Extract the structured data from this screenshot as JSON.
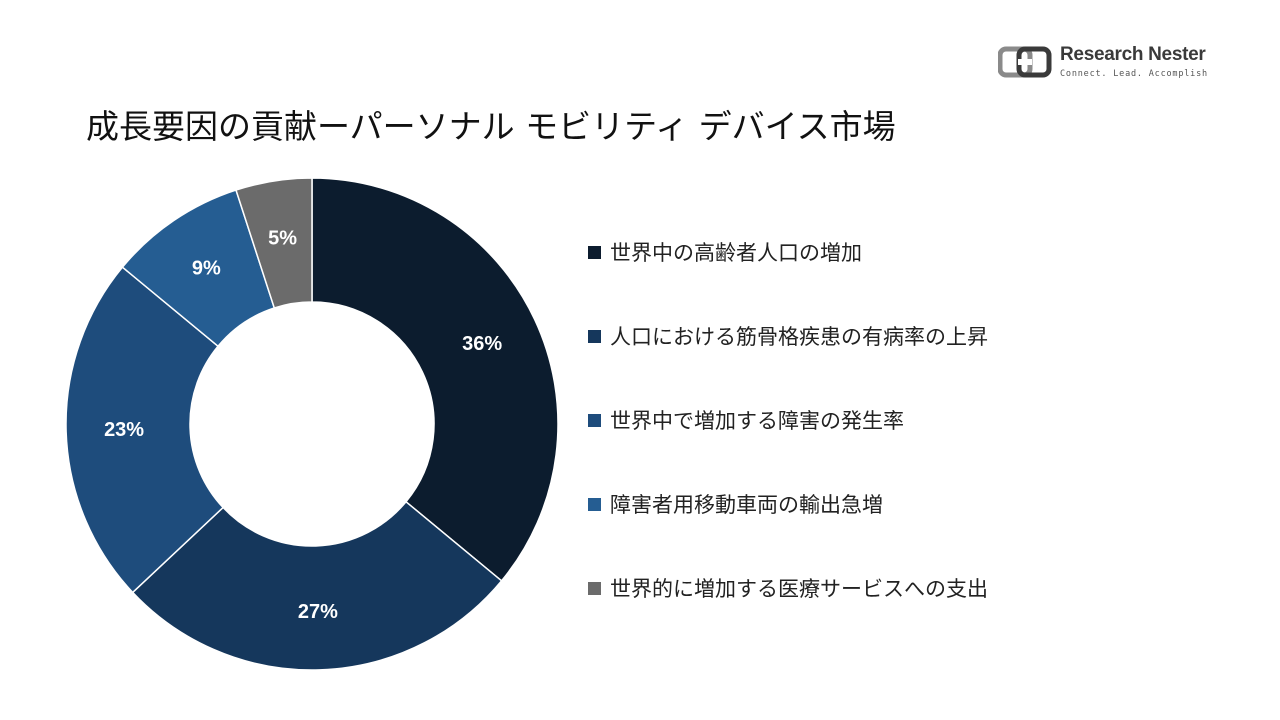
{
  "header": {
    "title": "成長要因の貢献ーパーソナル モビリティ デバイス市場"
  },
  "brand": {
    "name": "Research Nester",
    "tagline": "Connect. Lead. Accomplish",
    "icon": "research-nester-logo"
  },
  "colors": {
    "dark_navy": "#0c1c2e",
    "navy": "#15375c",
    "blue": "#1e4c7c",
    "mid_blue": "#255d92",
    "gray": "#6b6b6b",
    "label_text": "#ffffff"
  },
  "chart_data": {
    "type": "pie",
    "donut": true,
    "title": "成長要因の貢献ーパーソナル モビリティ デバイス市場",
    "slices": [
      {
        "label": "世界中の高齢者人口の増加",
        "value": 36,
        "display": "36%",
        "color": "#0c1c2e"
      },
      {
        "label": "人口における筋骨格疾患の有病率の上昇",
        "value": 27,
        "display": "27%",
        "color": "#15375c"
      },
      {
        "label": "世界中で増加する障害の発生率",
        "value": 23,
        "display": "23%",
        "color": "#1e4c7c"
      },
      {
        "label": "障害者用移動車両の輸出急増",
        "value": 9,
        "display": "9%",
        "color": "#255d92"
      },
      {
        "label": "世界的に増加する医療サービスへの支出",
        "value": 5,
        "display": "5%",
        "color": "#6b6b6b"
      }
    ],
    "legend_position": "right"
  }
}
